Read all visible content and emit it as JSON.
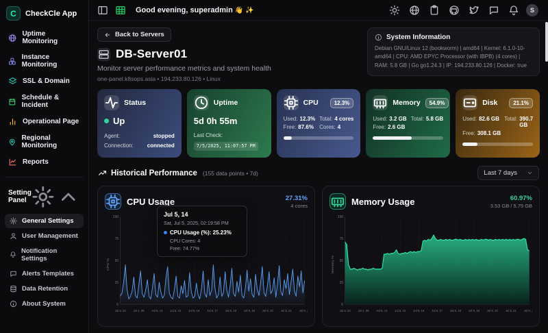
{
  "app": {
    "name": "CheckCle App",
    "logo_letter": "C",
    "accent": "#2ee6a8"
  },
  "sidebar": {
    "items": [
      {
        "icon": "globe",
        "label": "Uptime Monitoring",
        "color": "#a78bfa"
      },
      {
        "icon": "boxes",
        "label": "Instance Monitoring",
        "color": "#818cf8"
      },
      {
        "icon": "layers",
        "label": "SSL & Domain",
        "color": "#2dd4bf"
      },
      {
        "icon": "calendar",
        "label": "Schedule & Incident",
        "color": "#4ade80"
      },
      {
        "icon": "bar-chart",
        "label": "Operational Page",
        "color": "#fbbf24"
      },
      {
        "icon": "map-pin",
        "label": "Regional Monitoring",
        "color": "#2dd4bf"
      },
      {
        "icon": "line-chart",
        "label": "Reports",
        "color": "#f87171"
      }
    ],
    "settings_label": "Setting Panel",
    "settings_items": [
      {
        "icon": "gear",
        "label": "General Settings",
        "active": true
      },
      {
        "icon": "user",
        "label": "User Management"
      },
      {
        "icon": "bell",
        "label": "Notification Settings"
      },
      {
        "icon": "chat",
        "label": "Alerts Templates"
      },
      {
        "icon": "database",
        "label": "Data Retention"
      },
      {
        "icon": "info",
        "label": "About System"
      }
    ]
  },
  "topbar": {
    "greeting": "Good evening, superadmin",
    "wave_emoji": "👋",
    "sparkle_emoji": "✨",
    "left_icons": [
      "panel-left",
      "table"
    ],
    "right_icons": [
      "sun",
      "globe",
      "clipboard",
      "github",
      "twitter",
      "chat",
      "bell"
    ],
    "avatar": "S"
  },
  "page": {
    "back_label": "Back to Servers",
    "title": "DB-Server01",
    "subtitle": "Monitor server performance metrics and system health",
    "meta": "one-panel.k8sops.asia • 194.233.80.126 • Linux",
    "system_info": {
      "title": "System Information",
      "body": "Debian GNU/Linux 12 (bookworm) | amd64 | Kernel: 6.1.0-10-amd64 | CPU: AMD EPYC Processor (with IBPB) (4 cores) | RAM: 5.8 GB | Go go1.24.3 | IP: 194.233.80.126 | Docker: true"
    }
  },
  "cards": {
    "status": {
      "label": "Status",
      "value": "Up",
      "agent_label": "Agent:",
      "agent_value": "stopped",
      "connection_label": "Connection:",
      "connection_value": "connected"
    },
    "uptime": {
      "label": "Uptime",
      "value": "5d 0h 55m",
      "last_check_label": "Last Check:",
      "last_check": "7/5/2025, 11:07:57 PM"
    },
    "cpu": {
      "label": "CPU",
      "badge": "12.3%",
      "used_label": "Used:",
      "used": "12.3%",
      "total_label": "Total:",
      "total": "4 cores",
      "free_label": "Free:",
      "free": "87.6%",
      "cores_label": "Cores:",
      "cores": "4",
      "progress": 12.3
    },
    "memory": {
      "label": "Memory",
      "badge": "54.9%",
      "used_label": "Used:",
      "used": "3.2 GB",
      "total_label": "Total:",
      "total": "5.8 GB",
      "free_label": "Free:",
      "free": "2.6 GB",
      "progress": 54.9
    },
    "disk": {
      "label": "Disk",
      "badge": "21.1%",
      "used_label": "Used:",
      "used": "82.6 GB",
      "total_label": "Total:",
      "total": "390.7 GB",
      "free_label": "Free:",
      "free": "308.1 GB",
      "progress": 21.1
    }
  },
  "historical": {
    "title": "Historical Performance",
    "meta": "(155 data points • 7d)",
    "range": "Last 7 days"
  },
  "chart_data": [
    {
      "type": "line",
      "title": "CPU Usage",
      "current": "27.31%",
      "sub": "4 cores",
      "ylabel": "CPU %",
      "ylim": [
        0,
        100
      ],
      "yticks": [
        0,
        25,
        50,
        75,
        100
      ],
      "grid": true,
      "color": "#5ea2f7",
      "x_labels": [
        "Jul 3, 23",
        "Jul 4, 09",
        "Jul 5, 14",
        "Jul 5, 15",
        "Jul 5, 16",
        "Jul 5, 17",
        "Jul 5, 18",
        "Jul 5, 19",
        "Jul 5, 20",
        "Jul 5, 21",
        "Jul 5, 23"
      ],
      "values": [
        9,
        13,
        26,
        45,
        17,
        6,
        9,
        15,
        31,
        10,
        7,
        23,
        38,
        12,
        8,
        16,
        28,
        9,
        6,
        19,
        35,
        11,
        8,
        25,
        14,
        7,
        10,
        30,
        43,
        13,
        8,
        6,
        17,
        32,
        9,
        7,
        21,
        12,
        27,
        8,
        10,
        36,
        14,
        7,
        9,
        24,
        11,
        6,
        18,
        38,
        12,
        8,
        28,
        10,
        16,
        45,
        18,
        7,
        11,
        31,
        9,
        13,
        37,
        16,
        8,
        22,
        41,
        12,
        9,
        26,
        14,
        33,
        10,
        7,
        19,
        39,
        15,
        29,
        11,
        8,
        34,
        17,
        10,
        25,
        43,
        13,
        9,
        21,
        37,
        12,
        16,
        30,
        8,
        24,
        44,
        14,
        10,
        28,
        18,
        35,
        11,
        26,
        40,
        15,
        9,
        32,
        20,
        38,
        13,
        27
      ],
      "tooltip": {
        "title": "Jul 5, 14",
        "subtitle": "Sat, Jul 5, 2025, 02:19:58 PM",
        "main": "CPU Usage (%): 25.23%",
        "line2": "CPU Cores: 4",
        "line3": "Free: 74.77%"
      }
    },
    {
      "type": "area",
      "title": "Memory Usage",
      "current": "60.97%",
      "sub": "3.53 GB / 5.79 GB",
      "ylabel": "Memory %",
      "ylim": [
        0,
        100
      ],
      "yticks": [
        0,
        25,
        50,
        75,
        100
      ],
      "grid": true,
      "color": "#2fe0a2",
      "x_labels": [
        "Jul 3, 23",
        "Jul 4, 09",
        "Jul 5, 14",
        "Jul 5, 15",
        "Jul 5, 16",
        "Jul 5, 17",
        "Jul 5, 18",
        "Jul 5, 19",
        "Jul 5, 20",
        "Jul 5, 21",
        "Jul 5, 23"
      ],
      "values": [
        71,
        68,
        45,
        40,
        40,
        41,
        40,
        39,
        40,
        40,
        41,
        40,
        40,
        39,
        40,
        40,
        41,
        40,
        40,
        40,
        40,
        41,
        57,
        57,
        58,
        57,
        58,
        58,
        59,
        62,
        58,
        57,
        58,
        58,
        59,
        58,
        59,
        60,
        59,
        60,
        59,
        60,
        60,
        61,
        72,
        73,
        72,
        74,
        73,
        75,
        79,
        75,
        73,
        73,
        74,
        73,
        73,
        74,
        73,
        74,
        73,
        73,
        74,
        74,
        73,
        74,
        73,
        73,
        74,
        73,
        74,
        73,
        74,
        73,
        74,
        73,
        73,
        74,
        73,
        74,
        74,
        73,
        74,
        73,
        73,
        74,
        73,
        74,
        73,
        74,
        73,
        74,
        73,
        74,
        73,
        74,
        73,
        74,
        74,
        73,
        74,
        75,
        74,
        62,
        61
      ]
    }
  ]
}
